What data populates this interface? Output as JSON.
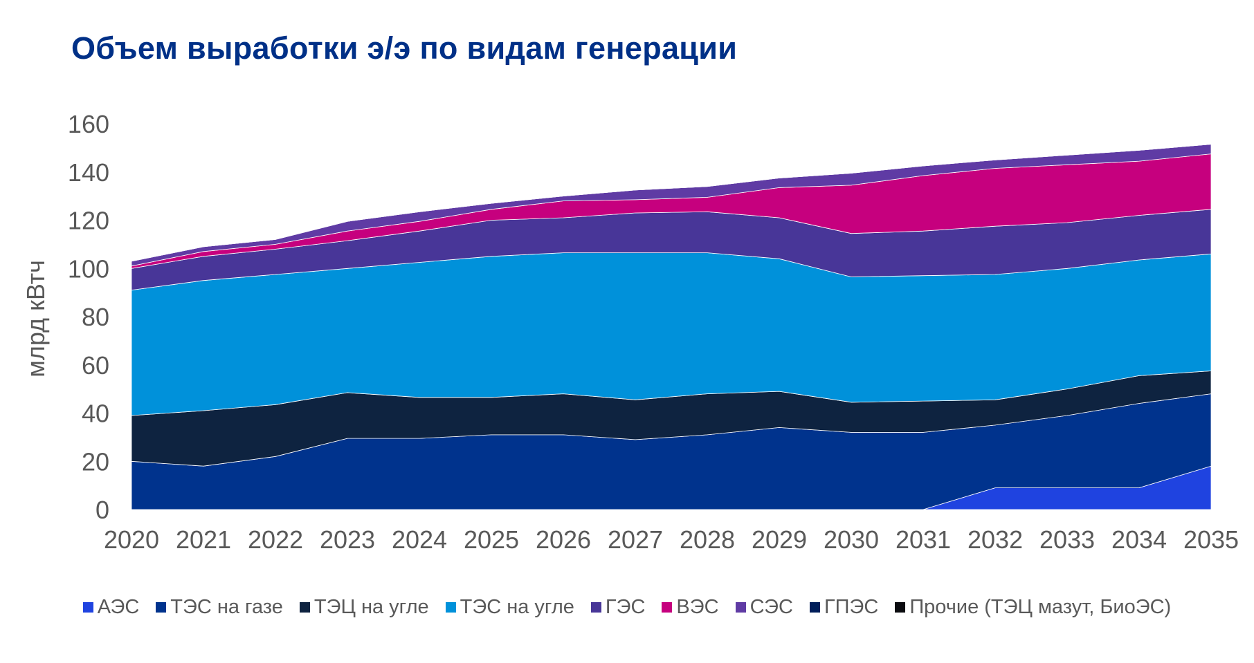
{
  "title": "Объем выработки э/э по видам генерации",
  "chart_data": {
    "type": "area",
    "stacked": true,
    "title": "Объем выработки э/э по видам генерации",
    "ylabel": "млрд кВтч",
    "xlabel": "",
    "ylim": [
      0,
      160
    ],
    "yticks": [
      0,
      20,
      40,
      60,
      80,
      100,
      120,
      140,
      160
    ],
    "categories": [
      "2020",
      "2021",
      "2022",
      "2023",
      "2024",
      "2025",
      "2026",
      "2027",
      "2028",
      "2029",
      "2030",
      "2031",
      "2032",
      "2033",
      "2034",
      "2035"
    ],
    "legend_position": "bottom",
    "series": [
      {
        "name": "АЭС",
        "color": "#1f43e0",
        "values": [
          0,
          0,
          0,
          0,
          0,
          0,
          0,
          0,
          0,
          0,
          0,
          0,
          9,
          9,
          9,
          18
        ]
      },
      {
        "name": "ТЭС на газе",
        "color": "#00338d",
        "values": [
          20,
          18,
          22,
          29.5,
          29.5,
          31,
          31,
          29,
          31,
          34,
          32,
          32,
          26,
          30,
          35,
          30
        ]
      },
      {
        "name": "ТЭЦ на угле",
        "color": "#0e2340",
        "values": [
          19,
          23,
          21.5,
          19,
          17,
          15.5,
          17,
          16.5,
          17,
          15,
          12.5,
          13,
          10.5,
          11,
          11.5,
          9.5
        ]
      },
      {
        "name": "ТЭС на угле",
        "color": "#0091da",
        "values": [
          52,
          54,
          54,
          51.5,
          56,
          58.5,
          58.5,
          61,
          58.5,
          55,
          52,
          52,
          52,
          50,
          48,
          48.5
        ]
      },
      {
        "name": "ГЭС",
        "color": "#483698",
        "values": [
          9,
          10,
          10.5,
          11.5,
          13,
          15,
          14.5,
          16.5,
          17,
          17,
          18,
          18.5,
          20,
          19,
          18.5,
          18.5
        ]
      },
      {
        "name": "ВЭС",
        "color": "#c6007e",
        "values": [
          1,
          2,
          2,
          4,
          4,
          4.5,
          7,
          5.5,
          6,
          12.5,
          20,
          23,
          24,
          24,
          22.5,
          23
        ]
      },
      {
        "name": "СЭС",
        "color": "#5f3ba4",
        "values": [
          2,
          2,
          2,
          4,
          4,
          2.5,
          2,
          4,
          4.5,
          4,
          5,
          4,
          3.5,
          4,
          4.5,
          4
        ]
      },
      {
        "name": "ГПЭС",
        "color": "#001e5a",
        "values": [
          0,
          0,
          0,
          0,
          0,
          0,
          0,
          0,
          0,
          0,
          0,
          0,
          0,
          0,
          0,
          0
        ]
      },
      {
        "name": "Прочие (ТЭЦ мазут, БиоЭС)",
        "color": "#0b0c10",
        "values": [
          0,
          0,
          0,
          0,
          0,
          0,
          0,
          0,
          0,
          0,
          0,
          0,
          0,
          0,
          0,
          0
        ]
      }
    ]
  }
}
